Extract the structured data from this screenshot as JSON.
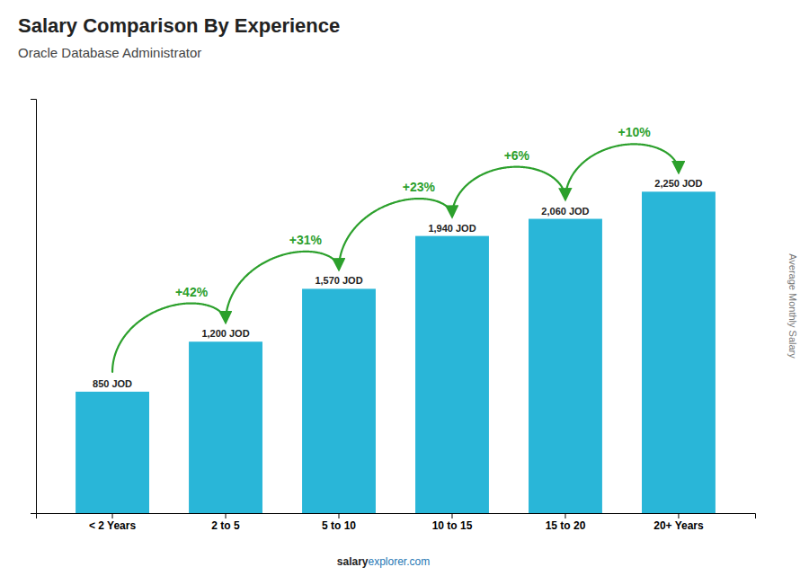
{
  "chart_data": {
    "type": "bar",
    "title": "Salary Comparison By Experience",
    "subtitle": "Oracle Database Administrator",
    "ylabel": "Average Monthly Salary",
    "categories": [
      "< 2 Years",
      "2 to 5",
      "5 to 10",
      "10 to 15",
      "15 to 20",
      "20+ Years"
    ],
    "values": [
      850,
      1200,
      1570,
      1940,
      2060,
      2250
    ],
    "value_labels": [
      "850 JOD",
      "1,200 JOD",
      "1,570 JOD",
      "1,940 JOD",
      "2,060 JOD",
      "2,250 JOD"
    ],
    "data_labels": true,
    "color": "#29b6d8",
    "annotations": [
      {
        "value": 42,
        "label": "+42%"
      },
      {
        "value": 31,
        "label": "+31%"
      },
      {
        "value": 23,
        "label": "+23%"
      },
      {
        "value": 6,
        "label": "+6%"
      },
      {
        "value": 10,
        "label": "+10%"
      }
    ],
    "footer": [
      "salary",
      "explorer.com"
    ],
    "ylim": [
      0,
      2900
    ],
    "yticks": [],
    "tick_labels": "x",
    "grid": false
  }
}
